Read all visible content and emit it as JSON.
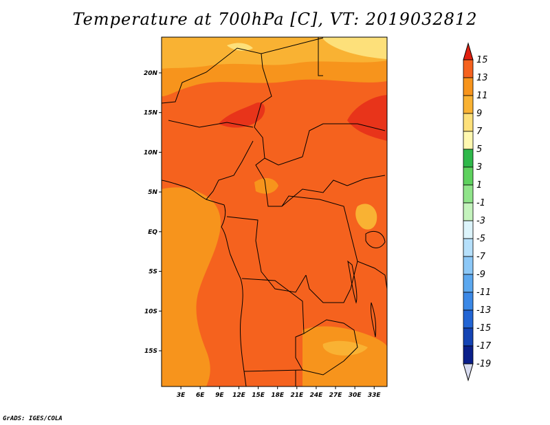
{
  "chart_data": {
    "type": "heatmap",
    "title": "Temperature at 700hPa [C], VT: 2019032812",
    "variable": "Temperature at 700hPa",
    "units": "C",
    "valid_time": "2019032812",
    "x_ticks": [
      "3E",
      "6E",
      "9E",
      "12E",
      "15E",
      "18E",
      "21E",
      "24E",
      "27E",
      "30E",
      "33E"
    ],
    "y_ticks": [
      "20N",
      "15N",
      "10N",
      "5N",
      "EQ",
      "5S",
      "10S",
      "15S"
    ],
    "lon_range": [
      0,
      35
    ],
    "lat_range": [
      -19.5,
      24.5
    ],
    "colorbar": {
      "levels": [
        "15",
        "13",
        "11",
        "9",
        "7",
        "5",
        "3",
        "1",
        "-1",
        "-3",
        "-5",
        "-7",
        "-9",
        "-11",
        "-13",
        "-15",
        "-17",
        "-19"
      ],
      "colors": [
        "#e8341a",
        "#f5621e",
        "#f7941c",
        "#f9b233",
        "#fde07a",
        "#fff8b0",
        "#2fb84a",
        "#5ed15e",
        "#90e48a",
        "#c4f3bd",
        "#dcf4fb",
        "#b6e0fb",
        "#8cc8f7",
        "#5ca8ef",
        "#3b88e6",
        "#2265d4",
        "#1444b4",
        "#0a1f8a",
        "#000060"
      ],
      "arrow_top_color": "#e02010",
      "arrow_bottom_color": "#d8dcf0"
    },
    "field_colors": {
      "t7": "#f9b233",
      "t9": "#f7941c",
      "t11": "#f5621e",
      "t13": "#e8341a",
      "t5": "#fde07a"
    },
    "credit": "GrADS: IGES/COLA"
  }
}
